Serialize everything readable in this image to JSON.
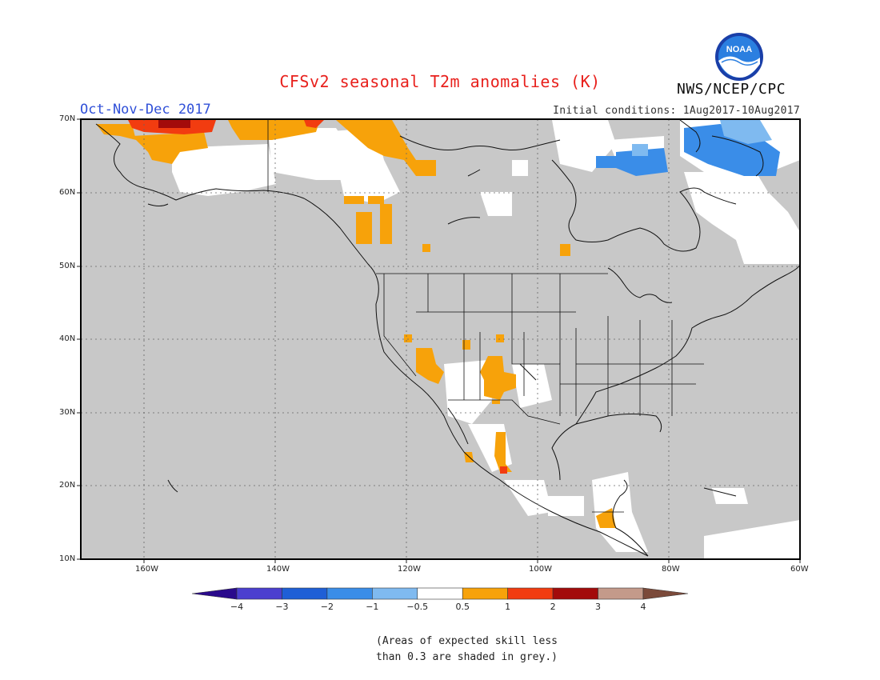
{
  "title": "CFSv2 seasonal T2m anomalies (K)",
  "period": "Oct-Nov-Dec 2017",
  "initial_conditions": "Initial conditions: 1Aug2017-10Aug2017",
  "agency": "NWS/NCEP/CPC",
  "logo_text": "NOAA",
  "lat_labels": [
    "70N",
    "60N",
    "50N",
    "40N",
    "30N",
    "20N",
    "10N"
  ],
  "lon_labels": [
    "160W",
    "140W",
    "120W",
    "100W",
    "80W",
    "60W"
  ],
  "colorbar": {
    "tick_labels": [
      "−4",
      "−3",
      "−2",
      "−1",
      "−0.5",
      "0.5",
      "1",
      "2",
      "3",
      "4"
    ],
    "colors": [
      "#2a0a8c",
      "#4b3fcf",
      "#1f5fd6",
      "#3a8de8",
      "#7fbaf0",
      "#ffffff",
      "#f7a20a",
      "#f23c10",
      "#a30b0b",
      "#c49a8a",
      "#7b4a3a"
    ]
  },
  "note_line1": "(Areas of expected skill less",
  "note_line2": "than 0.3 are shaded in grey.)",
  "colors": {
    "background_grey": "#c8c8c8",
    "title_red": "#e8201c",
    "period_blue": "#3050d8"
  }
}
